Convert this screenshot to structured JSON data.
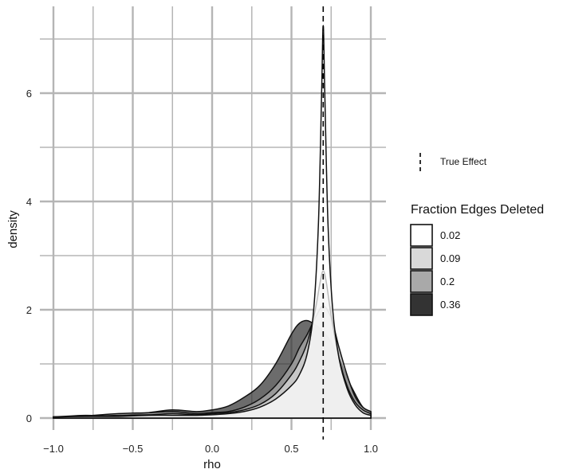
{
  "chart_data": {
    "type": "area",
    "title": "",
    "xlabel": "rho",
    "ylabel": "density",
    "xlim": [
      -1.0,
      1.0
    ],
    "ylim": [
      0,
      7.5
    ],
    "x_ticks": [
      -1.0,
      -0.5,
      0.0,
      0.5,
      1.0
    ],
    "x_tick_labels": [
      "−1.0",
      "−0.5",
      "0.0",
      "0.5",
      "1.0"
    ],
    "y_ticks": [
      0,
      2,
      4,
      6
    ],
    "y_tick_labels": [
      "0",
      "2",
      "4",
      "6"
    ],
    "grid": true,
    "reference_line": {
      "x": 0.7,
      "label": "True Effect",
      "style": "dashed"
    },
    "legend": {
      "title": "Fraction Edges Deleted",
      "placement": "right",
      "items": [
        {
          "label": "0.02",
          "color": "#ffffff"
        },
        {
          "label": "0.09",
          "color": "#d9d9d9"
        },
        {
          "label": "0.2",
          "color": "#a9a9a9"
        },
        {
          "label": "0.36",
          "color": "#333333"
        }
      ]
    },
    "series": [
      {
        "name": "0.36",
        "color": "#333333",
        "x": [
          -1.0,
          -0.8,
          -0.6,
          -0.4,
          -0.25,
          -0.1,
          0.0,
          0.1,
          0.2,
          0.3,
          0.4,
          0.5,
          0.55,
          0.6,
          0.65,
          0.7,
          0.75,
          0.8,
          0.85,
          0.9,
          0.95,
          1.0
        ],
        "y": [
          0.02,
          0.05,
          0.04,
          0.1,
          0.15,
          0.12,
          0.15,
          0.22,
          0.38,
          0.6,
          1.0,
          1.55,
          1.75,
          1.8,
          1.72,
          1.6,
          1.4,
          1.1,
          0.75,
          0.45,
          0.2,
          0.1
        ]
      },
      {
        "name": "0.2",
        "color": "#a9a9a9",
        "x": [
          -1.0,
          -0.8,
          -0.6,
          -0.4,
          -0.25,
          -0.1,
          0.0,
          0.1,
          0.2,
          0.3,
          0.4,
          0.5,
          0.55,
          0.6,
          0.65,
          0.7,
          0.75,
          0.8,
          0.85,
          0.9,
          0.95,
          1.0
        ],
        "y": [
          0.02,
          0.04,
          0.08,
          0.1,
          0.12,
          0.08,
          0.1,
          0.12,
          0.2,
          0.35,
          0.6,
          1.0,
          1.3,
          1.55,
          1.85,
          2.07,
          1.85,
          1.3,
          0.8,
          0.4,
          0.2,
          0.12
        ]
      },
      {
        "name": "0.09",
        "color": "#d9d9d9",
        "x": [
          -1.0,
          -0.8,
          -0.6,
          -0.4,
          -0.25,
          -0.1,
          0.0,
          0.1,
          0.2,
          0.3,
          0.4,
          0.5,
          0.55,
          0.6,
          0.65,
          0.68,
          0.7,
          0.72,
          0.75,
          0.8,
          0.85,
          0.9,
          0.95,
          1.0
        ],
        "y": [
          0.02,
          0.03,
          0.05,
          0.06,
          0.08,
          0.06,
          0.08,
          0.1,
          0.15,
          0.25,
          0.45,
          0.8,
          1.05,
          1.4,
          2.0,
          2.5,
          2.72,
          2.5,
          1.9,
          1.1,
          0.6,
          0.3,
          0.15,
          0.08
        ]
      },
      {
        "name": "0.02",
        "color": "#ffffff",
        "x": [
          -1.0,
          -0.8,
          -0.6,
          -0.4,
          -0.25,
          -0.1,
          0.0,
          0.1,
          0.2,
          0.3,
          0.4,
          0.5,
          0.55,
          0.6,
          0.64,
          0.67,
          0.69,
          0.7,
          0.71,
          0.73,
          0.76,
          0.8,
          0.85,
          0.9,
          0.95,
          1.0
        ],
        "y": [
          0.02,
          0.03,
          0.03,
          0.05,
          0.05,
          0.05,
          0.06,
          0.08,
          0.12,
          0.2,
          0.35,
          0.6,
          0.8,
          1.2,
          2.0,
          3.6,
          6.0,
          7.25,
          6.0,
          3.6,
          2.0,
          1.1,
          0.55,
          0.25,
          0.1,
          0.05
        ]
      }
    ]
  }
}
